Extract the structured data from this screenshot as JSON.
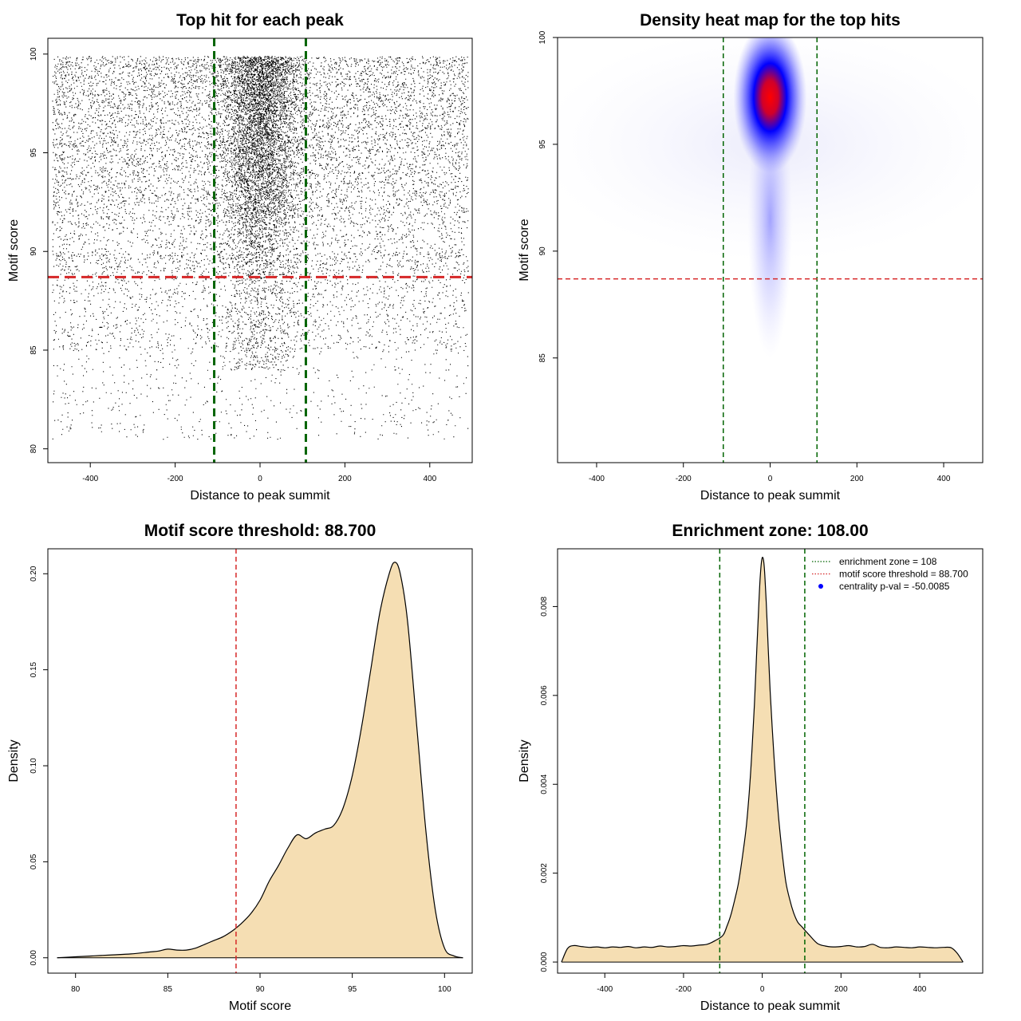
{
  "colors": {
    "threshold_line": "#d62728",
    "zone_line": "#006400",
    "density_fill": "#f5deb3",
    "points": "#000000",
    "heat_low": "#ffffff",
    "heat_mid": "#0000ff",
    "heat_high": "#ff0000",
    "pval_marker": "#0000ff"
  },
  "chart_data": [
    {
      "id": "scatter",
      "type": "scatter",
      "title": "Top hit for each peak",
      "xlabel": "Distance to peak summit",
      "ylabel": "Motif score",
      "xlim": [
        -500,
        500
      ],
      "ylim": [
        79.3,
        100.8
      ],
      "xticks": [
        -400,
        -200,
        0,
        200,
        400
      ],
      "yticks": [
        80,
        85,
        90,
        95,
        100
      ],
      "xtick_labels": [
        "-400",
        "-200",
        "0",
        "200",
        "400"
      ],
      "ytick_labels": [
        "80",
        "85",
        "90",
        "95",
        "100"
      ],
      "vlines": [
        -108,
        108
      ],
      "hline": 88.7,
      "point_cloud": {
        "x_range": [
          -490,
          490
        ],
        "y_range": [
          80.5,
          99.9
        ],
        "central_sd": 45,
        "n_uniform": 10000,
        "n_central": 9000
      }
    },
    {
      "id": "heatmap",
      "type": "heatmap",
      "title": "Density heat map for the top hits",
      "xlabel": "Distance to peak summit",
      "ylabel": "Motif score",
      "xlim": [
        -490,
        490
      ],
      "ylim": [
        80.1,
        100
      ],
      "xticks": [
        -400,
        -200,
        0,
        200,
        400
      ],
      "yticks": [
        85,
        90,
        95,
        100
      ],
      "xtick_labels": [
        "-400",
        "-200",
        "0",
        "200",
        "400"
      ],
      "ytick_labels": [
        "85",
        "90",
        "95",
        "100"
      ],
      "vlines": [
        -108,
        108
      ],
      "hline": 88.7,
      "hotspot": {
        "x": 0,
        "y": 97.2
      }
    },
    {
      "id": "score_density",
      "type": "area",
      "title": "Motif score threshold: 88.700",
      "xlabel": "Motif score",
      "ylabel": "Density",
      "xlim": [
        78.5,
        101.5
      ],
      "ylim": [
        -0.008,
        0.213
      ],
      "xticks": [
        80,
        85,
        90,
        95,
        100
      ],
      "yticks": [
        0.0,
        0.05,
        0.1,
        0.15,
        0.2
      ],
      "xtick_labels": [
        "80",
        "85",
        "90",
        "95",
        "100"
      ],
      "ytick_labels": [
        "0.00",
        "0.05",
        "0.10",
        "0.15",
        "0.20"
      ],
      "vline": 88.7,
      "x": [
        79.0,
        80.0,
        81.0,
        82.0,
        83.0,
        84.0,
        84.5,
        85.0,
        85.5,
        86.0,
        86.5,
        87.0,
        87.5,
        88.0,
        88.5,
        89.0,
        89.5,
        90.0,
        90.5,
        91.0,
        91.5,
        92.0,
        92.5,
        93.0,
        93.5,
        94.0,
        94.5,
        95.0,
        95.5,
        96.0,
        96.5,
        97.0,
        97.3,
        97.6,
        98.0,
        98.5,
        99.0,
        99.5,
        100.0,
        100.5,
        101.0
      ],
      "y": [
        0.0,
        0.0005,
        0.001,
        0.0015,
        0.002,
        0.003,
        0.0035,
        0.0045,
        0.004,
        0.004,
        0.005,
        0.007,
        0.009,
        0.011,
        0.014,
        0.018,
        0.023,
        0.03,
        0.04,
        0.048,
        0.057,
        0.064,
        0.062,
        0.065,
        0.067,
        0.069,
        0.078,
        0.095,
        0.12,
        0.15,
        0.18,
        0.2,
        0.206,
        0.2,
        0.175,
        0.12,
        0.065,
        0.025,
        0.005,
        0.001,
        0.0
      ],
      "baseline": 0
    },
    {
      "id": "distance_density",
      "type": "area",
      "title": "Enrichment zone: 108.00",
      "xlabel": "Distance to peak summit",
      "ylabel": "Density",
      "xlim": [
        -520,
        560
      ],
      "ylim": [
        -0.00025,
        0.0093
      ],
      "xticks": [
        -400,
        -200,
        0,
        200,
        400
      ],
      "yticks": [
        0.0,
        0.002,
        0.004,
        0.006,
        0.008
      ],
      "xtick_labels": [
        "-400",
        "-200",
        "0",
        "200",
        "400"
      ],
      "ytick_labels": [
        "0.000",
        "0.002",
        "0.004",
        "0.006",
        "0.008"
      ],
      "vlines": [
        -108,
        108
      ],
      "x": [
        -510,
        -495,
        -480,
        -460,
        -440,
        -420,
        -400,
        -380,
        -360,
        -340,
        -320,
        -300,
        -280,
        -260,
        -240,
        -220,
        -200,
        -180,
        -160,
        -140,
        -120,
        -100,
        -90,
        -80,
        -70,
        -60,
        -50,
        -40,
        -30,
        -20,
        -15,
        -10,
        -5,
        0,
        5,
        10,
        15,
        20,
        30,
        40,
        50,
        60,
        70,
        80,
        90,
        100,
        110,
        120,
        140,
        160,
        180,
        200,
        220,
        240,
        260,
        280,
        300,
        320,
        340,
        360,
        380,
        400,
        420,
        440,
        460,
        480,
        495,
        510
      ],
      "y": [
        0.0,
        0.0003,
        0.00037,
        0.00035,
        0.00033,
        0.00034,
        0.00032,
        0.00034,
        0.00033,
        0.00035,
        0.00032,
        0.00034,
        0.00033,
        0.00036,
        0.00034,
        0.00035,
        0.00037,
        0.00036,
        0.00038,
        0.0004,
        0.00048,
        0.0006,
        0.0008,
        0.00105,
        0.0014,
        0.0018,
        0.0024,
        0.0031,
        0.0042,
        0.0058,
        0.0068,
        0.0078,
        0.0087,
        0.0091,
        0.0089,
        0.0081,
        0.0071,
        0.0061,
        0.0046,
        0.0034,
        0.0025,
        0.0018,
        0.0014,
        0.0011,
        0.0009,
        0.0008,
        0.0007,
        0.0006,
        0.00042,
        0.00036,
        0.00034,
        0.00035,
        0.00037,
        0.00034,
        0.00035,
        0.0004,
        0.00033,
        0.00032,
        0.00034,
        0.00033,
        0.00032,
        0.00034,
        0.00033,
        0.00032,
        0.00033,
        0.00032,
        0.0002,
        0.0
      ],
      "baseline": 0,
      "legend": {
        "placement": "top-right",
        "entries": [
          {
            "label": "enrichment zone = 108",
            "style": "dotted",
            "color": "#006400"
          },
          {
            "label": "motif score threshold = 88.700",
            "style": "dotted",
            "color": "#d62728"
          },
          {
            "label": "centrality p-val = -50.0085",
            "style": "point",
            "color": "#0000ff"
          }
        ]
      }
    }
  ]
}
